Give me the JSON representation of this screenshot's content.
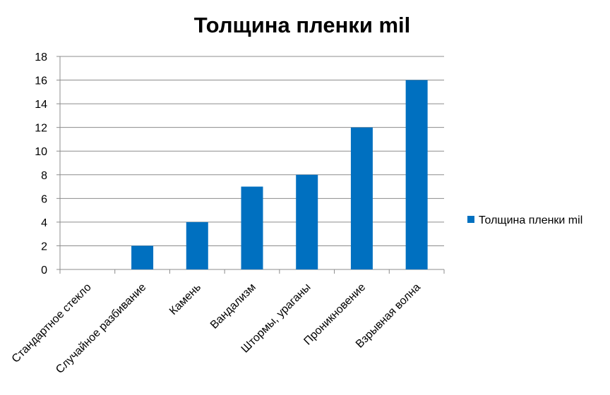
{
  "chart_data": {
    "type": "bar",
    "title": "Толщина пленки mil",
    "xlabel": "",
    "ylabel": "",
    "categories": [
      "Стандартное стекло",
      "Случайное разбивание",
      "Камень",
      "Вандализм",
      "Штормы, ураганы",
      "Проникновение",
      "Взрывная волна"
    ],
    "series": [
      {
        "name": "Толщина пленки mil",
        "values": [
          0,
          2,
          4,
          7,
          8,
          12,
          16
        ],
        "color": "#0070C0"
      }
    ],
    "ylim": [
      0,
      18
    ],
    "yticks": [
      0,
      2,
      4,
      6,
      8,
      10,
      12,
      14,
      16,
      18
    ],
    "grid": true,
    "legend": "right"
  }
}
